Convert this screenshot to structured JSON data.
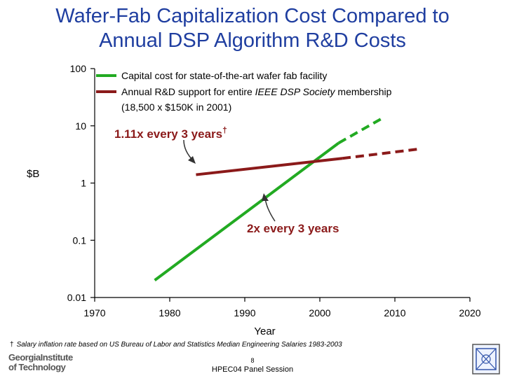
{
  "title_line1": "Wafer-Fab Capitalization Cost Compared to",
  "title_line2": "Annual DSP Algorithm R&D Costs",
  "chart_data": {
    "type": "line",
    "y_scale": "log",
    "xlim": [
      1970,
      2020
    ],
    "ylim": [
      0.01,
      100
    ],
    "x_ticks": [
      "1970",
      "1980",
      "1990",
      "2000",
      "2010",
      "2020"
    ],
    "y_ticks": [
      "0.01",
      "0.1",
      "1",
      "10",
      "100"
    ],
    "xlabel": "Year",
    "ylabel": "$B",
    "legend": [
      {
        "text": "Capital cost for state-of-the-art wafer fab facility",
        "color": "#22aa22"
      },
      {
        "text_line1_prefix": "Annual R&D support for entire ",
        "text_line1_italic": "IEEE DSP Society",
        "text_line1_suffix": " membership",
        "text_line2": "(18,500 x $150K in 2001)",
        "color": "#8b1a1a"
      }
    ],
    "series": [
      {
        "color": "#22aa22",
        "style": "solid",
        "points": [
          [
            1978,
            0.02
          ],
          [
            2002.5,
            5.0
          ]
        ]
      },
      {
        "color": "#22aa22",
        "style": "dashed",
        "points": [
          [
            2002.5,
            5.0
          ],
          [
            2008.5,
            14.0
          ]
        ]
      },
      {
        "color": "#8b1a1a",
        "style": "solid",
        "points": [
          [
            1983.5,
            1.4
          ],
          [
            2003,
            2.7
          ]
        ]
      },
      {
        "color": "#8b1a1a",
        "style": "dashed",
        "points": [
          [
            2003,
            2.7
          ],
          [
            2013,
            3.9
          ]
        ]
      }
    ],
    "annotations": [
      {
        "text": "1.11x every 3 years",
        "dagger": "†",
        "color": "#8b1a1a"
      },
      {
        "text": "2x every 3 years",
        "color": "#8b1a1a"
      }
    ]
  },
  "footnote_dagger": "†",
  "footnote": "Salary inflation rate based on US Bureau of Labor and Statistics Median Engineering Salaries 1983-2003",
  "logo_line1": "GeorgiaInstitute",
  "logo_line2": "of Technology",
  "page_number": "8",
  "session": "HPEC04 Panel Session"
}
